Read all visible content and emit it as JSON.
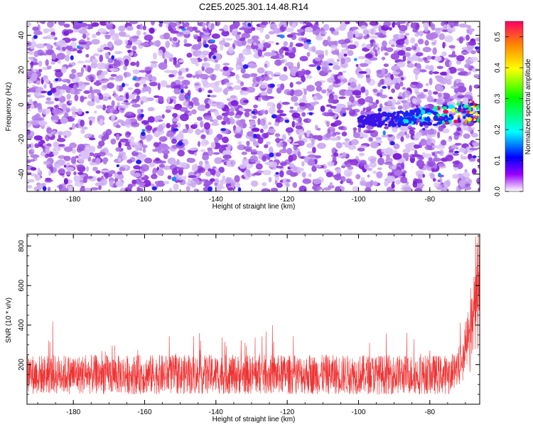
{
  "figure_title": "C2E5.2025.301.14.48.R14",
  "chart_data": [
    {
      "type": "heatmap",
      "xlabel": "Height of straight line (km)",
      "ylabel": "Frequency (Hz)",
      "xlim": [
        -193,
        -66
      ],
      "ylim": [
        -50,
        48
      ],
      "xticks": [
        -180,
        -160,
        -140,
        -120,
        -100,
        -80
      ],
      "yticks": [
        -40,
        -20,
        0,
        20,
        40
      ],
      "colorbar": {
        "label": "Normalized spectral amplitude",
        "range": [
          0,
          0.55
        ],
        "ticks": [
          0.0,
          0.1,
          0.2,
          0.3,
          0.4,
          0.5
        ]
      },
      "features": [
        {
          "x_range": [
            -100,
            -66
          ],
          "y_center": -4,
          "amplitude_peak": 0.48,
          "note": "strong echo near 0 Hz increasing toward -68 km"
        }
      ]
    },
    {
      "type": "line",
      "xlabel": "Height of straight line (km)",
      "ylabel": "SNR (10 * v/v)",
      "xlim": [
        -193,
        -66
      ],
      "ylim": [
        0,
        860
      ],
      "xticks": [
        -180,
        -160,
        -140,
        -120,
        -100,
        -80
      ],
      "yticks": [
        200,
        400,
        600,
        800
      ],
      "color": "#ee3333",
      "series_summary": {
        "baseline_mean": 150,
        "baseline_spread": 100,
        "rise_start_x": -75,
        "max_value": 860,
        "max_x": -68
      }
    }
  ]
}
